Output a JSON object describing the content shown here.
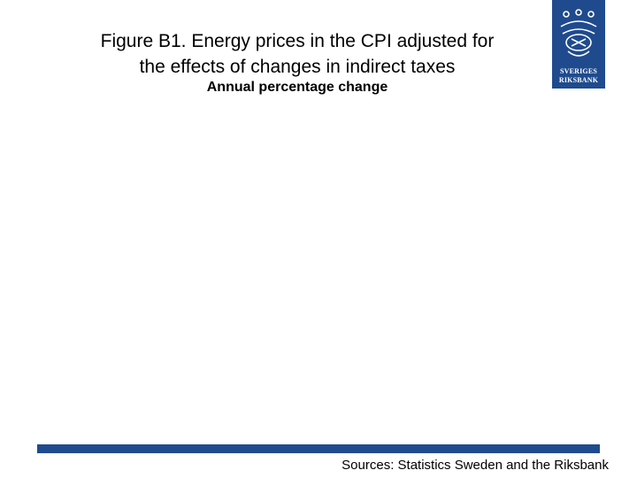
{
  "header": {
    "title_lines": [
      "Figure B1. Energy prices in the CPI adjusted for",
      "the effects of changes in indirect taxes"
    ],
    "subtitle": "Annual percentage change"
  },
  "logo": {
    "lines": [
      "SVERIGES",
      "RIKSBANK"
    ]
  },
  "footer": {
    "source": "Sources: Statistics Sweden and the Riksbank"
  }
}
